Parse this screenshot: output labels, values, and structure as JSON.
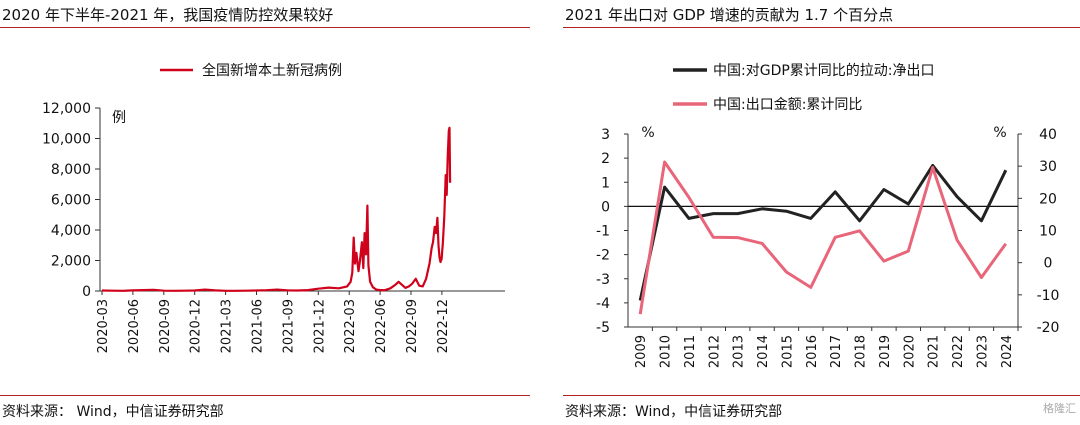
{
  "left": {
    "title": "2020 年下半年-2021 年，我国疫情防控效果较好",
    "source": "资料来源：  Wind，中信证券研究部"
  },
  "right": {
    "title": "2021 年出口对 GDP 增速的贡献为 1.7 个百分点",
    "source": "资料来源：Wind，中信证券研究部"
  },
  "watermark": "格隆汇",
  "chart_data": [
    {
      "type": "line",
      "title": "2020 年下半年-2021 年，我国疫情防控效果较好",
      "ylabel": "例",
      "ylim": [
        0,
        12000
      ],
      "yticks": [
        0,
        2000,
        4000,
        6000,
        8000,
        10000,
        12000
      ],
      "ytick_labels": [
        "0",
        "2,000",
        "4,000",
        "6,000",
        "8,000",
        "10,000",
        "12,000"
      ],
      "x_tick_labels": [
        "2020-03",
        "2020-06",
        "2020-09",
        "2020-12",
        "2021-03",
        "2021-06",
        "2021-09",
        "2021-12",
        "2022-03",
        "2022-06",
        "2022-09",
        "2022-12"
      ],
      "legend_position": "top-center",
      "series": [
        {
          "name": "全国新增本土新冠病例",
          "color": "#d0021b",
          "points": [
            [
              "2020-03",
              30
            ],
            [
              "2020-04",
              20
            ],
            [
              "2020-05",
              10
            ],
            [
              "2020-06",
              40
            ],
            [
              "2020-07",
              60
            ],
            [
              "2020-08",
              80
            ],
            [
              "2020-09",
              20
            ],
            [
              "2020-10",
              15
            ],
            [
              "2020-11",
              20
            ],
            [
              "2020-12",
              30
            ],
            [
              "2021-01",
              90
            ],
            [
              "2021-02",
              40
            ],
            [
              "2021-03",
              10
            ],
            [
              "2021-04",
              10
            ],
            [
              "2021-05",
              20
            ],
            [
              "2021-06",
              30
            ],
            [
              "2021-07",
              50
            ],
            [
              "2021-08",
              90
            ],
            [
              "2021-09",
              40
            ],
            [
              "2021-10",
              30
            ],
            [
              "2021-11",
              60
            ],
            [
              "2021-12",
              150
            ],
            [
              "2022-01",
              220
            ],
            [
              "2022-02",
              180
            ],
            [
              "2022-02-25",
              300
            ],
            [
              "2022-03-05",
              600
            ],
            [
              "2022-03-10",
              1200
            ],
            [
              "2022-03-14",
              3500
            ],
            [
              "2022-03-18",
              1800
            ],
            [
              "2022-03-22",
              2500
            ],
            [
              "2022-03-28",
              1300
            ],
            [
              "2022-04-02",
              1900
            ],
            [
              "2022-04-08",
              3200
            ],
            [
              "2022-04-12",
              1500
            ],
            [
              "2022-04-16",
              3800
            ],
            [
              "2022-04-20",
              2400
            ],
            [
              "2022-04-24",
              5600
            ],
            [
              "2022-04-27",
              1700
            ],
            [
              "2022-05-02",
              600
            ],
            [
              "2022-05-10",
              250
            ],
            [
              "2022-05-20",
              90
            ],
            [
              "2022-06-01",
              60
            ],
            [
              "2022-06-15",
              50
            ],
            [
              "2022-07-01",
              180
            ],
            [
              "2022-07-15",
              400
            ],
            [
              "2022-07-25",
              600
            ],
            [
              "2022-08-05",
              400
            ],
            [
              "2022-08-15",
              200
            ],
            [
              "2022-08-25",
              300
            ],
            [
              "2022-09-05",
              500
            ],
            [
              "2022-09-15",
              800
            ],
            [
              "2022-09-25",
              350
            ],
            [
              "2022-10-05",
              300
            ],
            [
              "2022-10-15",
              800
            ],
            [
              "2022-10-25",
              1800
            ],
            [
              "2022-11-01",
              2800
            ],
            [
              "2022-11-05",
              3200
            ],
            [
              "2022-11-10",
              4200
            ],
            [
              "2022-11-14",
              3800
            ],
            [
              "2022-11-18",
              4800
            ],
            [
              "2022-11-21",
              3000
            ],
            [
              "2022-11-24",
              2200
            ],
            [
              "2022-11-27",
              1900
            ],
            [
              "2022-11-30",
              2100
            ],
            [
              "2022-12-04",
              3200
            ],
            [
              "2022-12-08",
              4900
            ],
            [
              "2022-12-12",
              7600
            ],
            [
              "2022-12-15",
              6300
            ],
            [
              "2022-12-18",
              8800
            ],
            [
              "2022-12-21",
              10500
            ],
            [
              "2022-12-23",
              10700
            ],
            [
              "2022-12-25",
              7100
            ]
          ]
        }
      ]
    },
    {
      "type": "line",
      "title": "2021 年出口对 GDP 增速的贡献为 1.7 个百分点",
      "categories": [
        "2009",
        "2010",
        "2011",
        "2012",
        "2013",
        "2014",
        "2015",
        "2016",
        "2017",
        "2018",
        "2019",
        "2020",
        "2021",
        "2022",
        "2023",
        "2024"
      ],
      "legend_position": "top-left",
      "y_left": {
        "label": "%",
        "ylim": [
          -5,
          3
        ],
        "ticks": [
          -5,
          -4,
          -3,
          -2,
          -1,
          0,
          1,
          2,
          3
        ]
      },
      "y_right": {
        "label": "%",
        "ylim": [
          -20,
          40
        ],
        "ticks": [
          -20,
          -10,
          0,
          10,
          20,
          30,
          40
        ]
      },
      "series": [
        {
          "name": "中国:对GDP累计同比的拉动:净出口",
          "color": "#222222",
          "axis": "left",
          "values": [
            -3.9,
            0.8,
            -0.5,
            -0.3,
            -0.3,
            -0.1,
            -0.2,
            -0.5,
            0.6,
            -0.6,
            0.7,
            0.1,
            1.7,
            0.4,
            -0.6,
            1.5
          ]
        },
        {
          "name": "中国:出口金额:累计同比",
          "color": "#e8657a",
          "axis": "right",
          "values": [
            -16,
            31.3,
            20.3,
            7.9,
            7.8,
            6.0,
            -2.9,
            -7.7,
            7.9,
            9.9,
            0.5,
            3.6,
            29.6,
            7.0,
            -4.6,
            5.9
          ]
        }
      ]
    }
  ]
}
